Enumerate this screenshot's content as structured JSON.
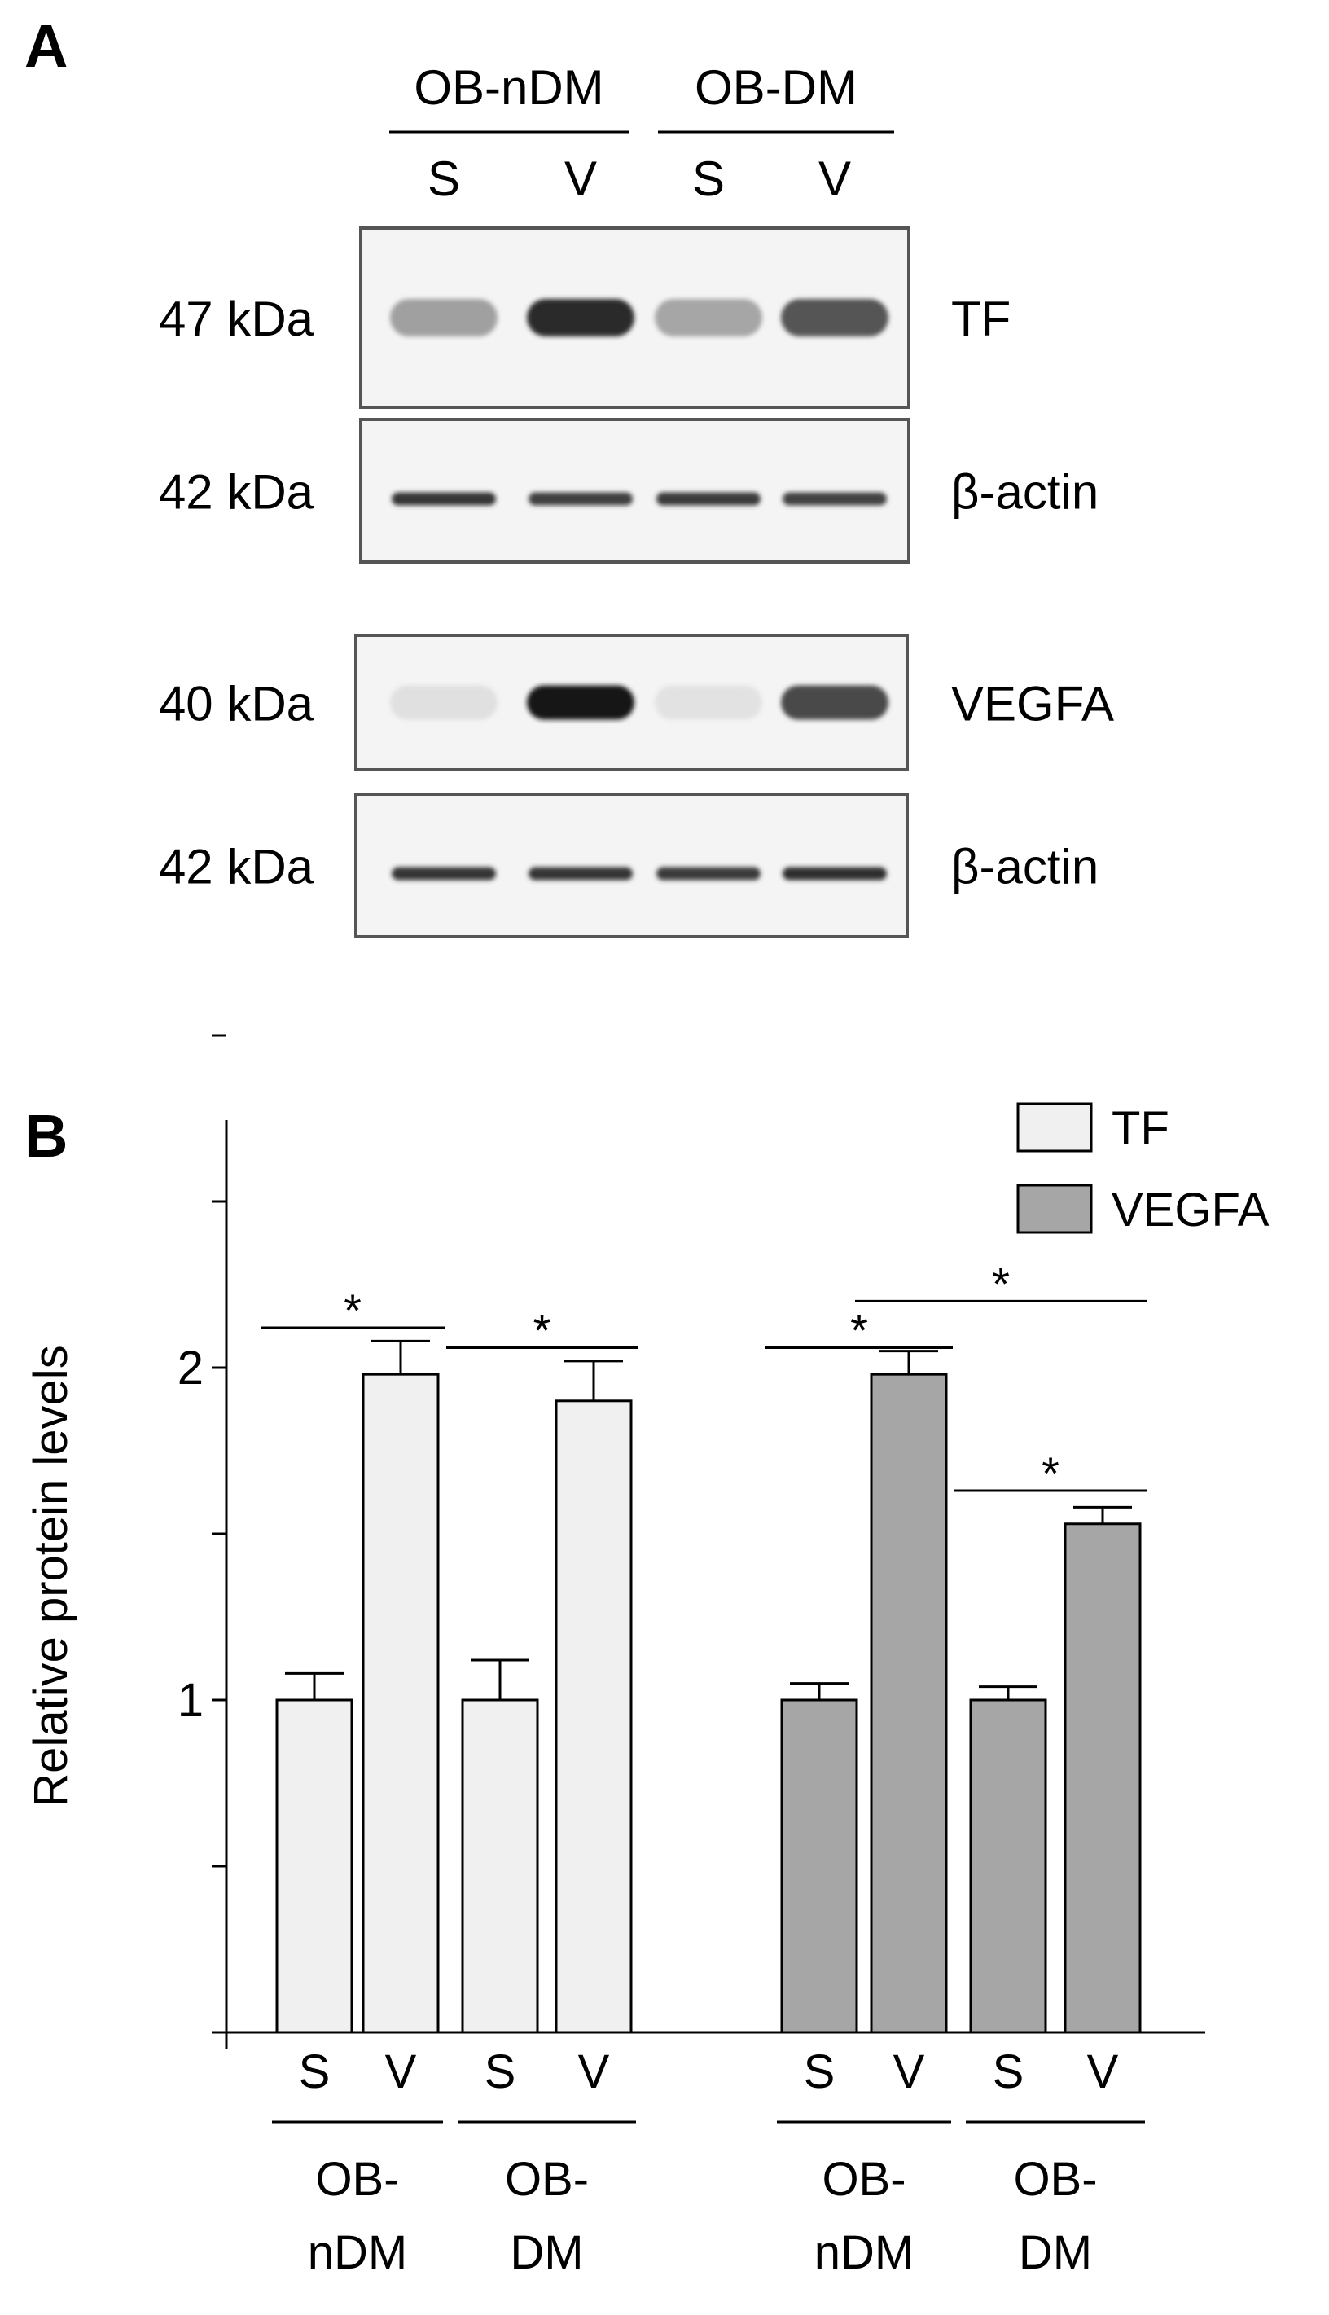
{
  "panel_a": {
    "letter": "A",
    "groups": [
      {
        "label": "OB-nDM",
        "lanes": [
          "S",
          "V"
        ]
      },
      {
        "label": "OB-DM",
        "lanes": [
          "S",
          "V"
        ]
      }
    ],
    "blots": [
      {
        "protein": "TF",
        "mw": "47 kDa",
        "bands": [
          0.35,
          0.9,
          0.32,
          0.7
        ]
      },
      {
        "protein": "β-actin",
        "mw": "42 kDa",
        "bands": [
          0.85,
          0.8,
          0.82,
          0.78
        ]
      },
      {
        "protein": "VEGFA",
        "mw": "40 kDa",
        "bands": [
          0.05,
          1.0,
          0.04,
          0.75
        ]
      },
      {
        "protein": "β-actin",
        "mw": "42 kDa",
        "bands": [
          0.85,
          0.85,
          0.82,
          0.88
        ]
      }
    ]
  },
  "chart_data": {
    "letter": "B",
    "type": "bar",
    "ylabel": "Relative protein levels",
    "ylim": [
      0,
      3
    ],
    "yticks": [
      0,
      0.5,
      1,
      1.5,
      2,
      2.5,
      3
    ],
    "ytick_labels": [
      "",
      "",
      "1",
      "",
      "2",
      "",
      ""
    ],
    "legend": [
      {
        "name": "TF",
        "color": "#f0f0f0"
      },
      {
        "name": "VEGFA",
        "color": "#a6a6a6"
      }
    ],
    "legend_position": "top-right",
    "bar_labels": [
      "S",
      "V",
      "S",
      "V",
      "S",
      "V",
      "S",
      "V"
    ],
    "bar_values": [
      1.0,
      1.98,
      1.0,
      1.9,
      1.0,
      1.98,
      1.0,
      1.53
    ],
    "bar_errors": [
      0.08,
      0.1,
      0.12,
      0.12,
      0.05,
      0.07,
      0.04,
      0.05
    ],
    "bar_series": [
      "TF",
      "TF",
      "TF",
      "TF",
      "VEGFA",
      "VEGFA",
      "VEGFA",
      "VEGFA"
    ],
    "group_labels": [
      {
        "line1": "OB-",
        "line2": "nDM"
      },
      {
        "line1": "OB-",
        "line2": "DM"
      },
      {
        "line1": "OB-",
        "line2": "nDM"
      },
      {
        "line1": "OB-",
        "line2": "DM"
      }
    ],
    "significance": [
      {
        "from": 0,
        "to": 1,
        "level": 2.12,
        "label": "*"
      },
      {
        "from": 2,
        "to": 3,
        "level": 2.06,
        "label": "*"
      },
      {
        "from": 4,
        "to": 5,
        "level": 2.06,
        "label": "*"
      },
      {
        "from": 5,
        "to": 7,
        "level": 2.2,
        "label": "*"
      },
      {
        "from": 6,
        "to": 7,
        "level": 1.63,
        "label": "*"
      }
    ],
    "colors": {
      "TF": "#f0f0f0",
      "VEGFA": "#a6a6a6"
    }
  }
}
